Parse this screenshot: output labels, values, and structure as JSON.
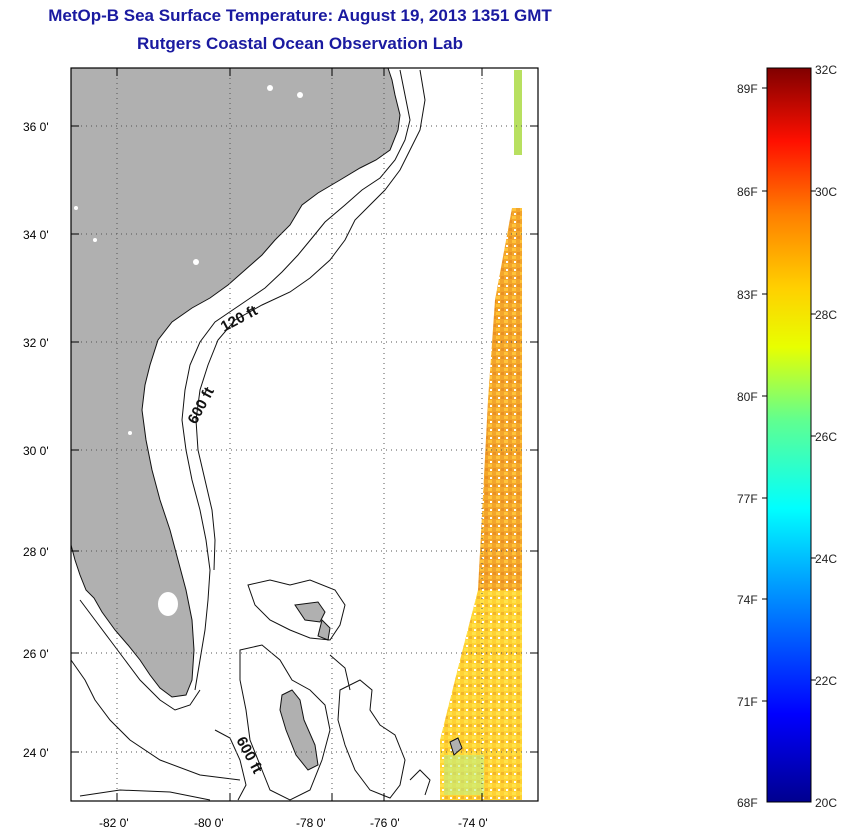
{
  "title": {
    "line1": "MetOp-B Sea Surface Temperature:  August 19, 2013 1351 GMT",
    "line2": "Rutgers Coastal Ocean Observation Lab"
  },
  "map": {
    "lon_labels": [
      "-82 0'",
      "-80 0'",
      "-78 0'",
      "-76 0'",
      "-74 0'"
    ],
    "lat_labels": [
      "36 0'",
      "34 0'",
      "32 0'",
      "30 0'",
      "28 0'",
      "26 0'",
      "24 0'"
    ],
    "contour_labels": [
      "120 ft",
      "600 ft",
      "600 ft"
    ],
    "land_color": "#b0b0b0"
  },
  "colorbar": {
    "f_labels": [
      "89F",
      "86F",
      "83F",
      "80F",
      "77F",
      "74F",
      "71F",
      "68F"
    ],
    "c_labels": [
      "32C",
      "30C",
      "28C",
      "26C",
      "24C",
      "22C",
      "20C"
    ]
  }
}
